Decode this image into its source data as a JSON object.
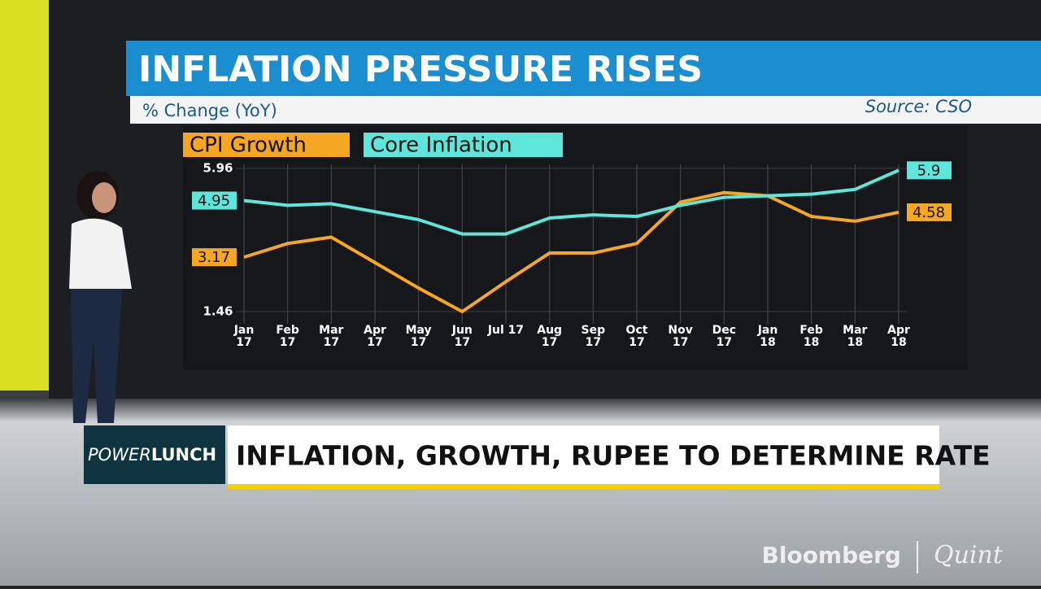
{
  "chart_data": {
    "type": "line",
    "title": "INFLATION PRESSURE RISES",
    "subtitle": "% Change (YoY)",
    "source": "Source: CSO",
    "categories": [
      "Jan 17",
      "Feb 17",
      "Mar 17",
      "Apr 17",
      "May 17",
      "Jun 17",
      "Jul 17",
      "Aug 17",
      "Sep 17",
      "Oct 17",
      "Nov 17",
      "Dec 17",
      "Jan 18",
      "Feb 18",
      "Mar 18",
      "Apr 18"
    ],
    "series": [
      {
        "name": "CPI Growth",
        "color": "#f5a623",
        "values": [
          3.17,
          3.6,
          3.8,
          3.0,
          2.2,
          1.46,
          2.4,
          3.3,
          3.3,
          3.6,
          4.9,
          5.2,
          5.1,
          4.45,
          4.3,
          4.58
        ]
      },
      {
        "name": "Core Inflation",
        "color": "#5ee6dc",
        "values": [
          4.95,
          4.8,
          4.85,
          4.6,
          4.35,
          3.9,
          3.9,
          4.4,
          4.5,
          4.45,
          4.8,
          5.05,
          5.1,
          5.15,
          5.3,
          5.9
        ]
      }
    ],
    "ylim": [
      1.46,
      5.96
    ],
    "yticks": [
      1.46,
      5.96
    ],
    "grid": true
  },
  "lower_third": {
    "show_brand_1": "POWER",
    "show_brand_2": "LUNCH",
    "headline": "INFLATION, GROWTH, RUPEE TO DETERMINE RATE"
  },
  "logos": {
    "left": "Bloomberg",
    "right": "Quint"
  }
}
